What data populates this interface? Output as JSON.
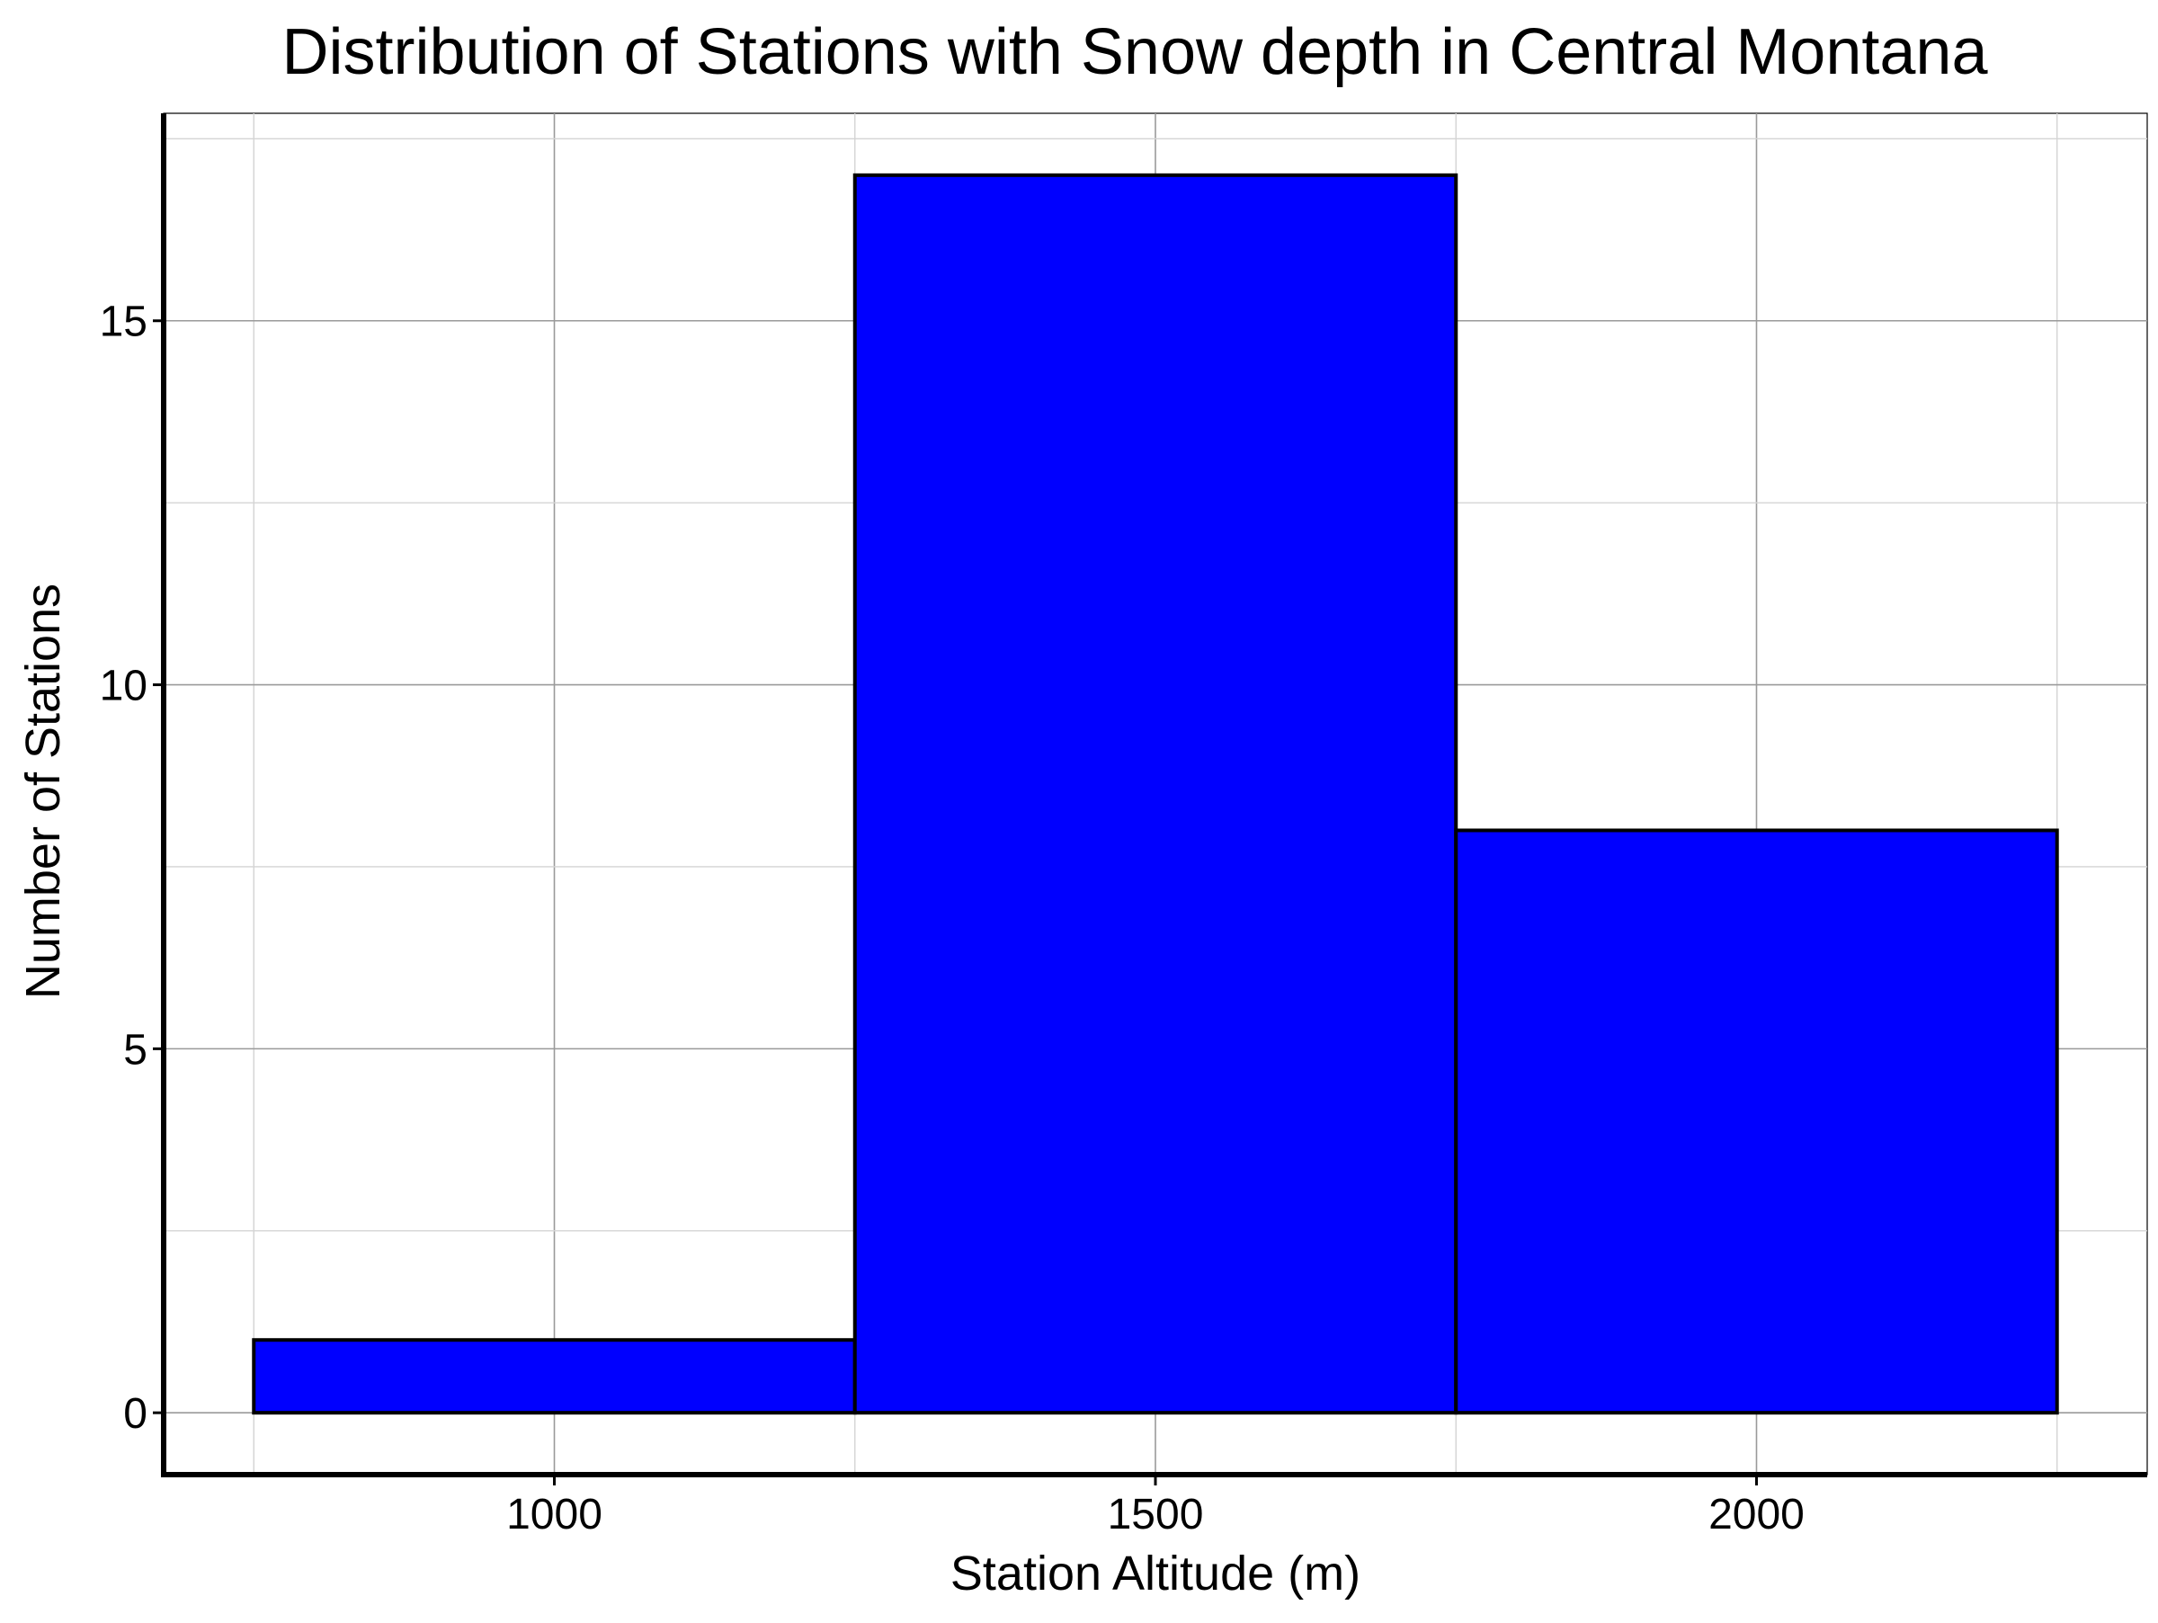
{
  "chart_data": {
    "type": "bar",
    "title": "Distribution of Stations with Snow depth in Central Montana",
    "xlabel": "Station Altitude (m)",
    "ylabel": "Number of Stations",
    "bins": [
      {
        "x0": 750,
        "x1": 1250,
        "value": 1
      },
      {
        "x0": 1250,
        "x1": 1750,
        "value": 17
      },
      {
        "x0": 1750,
        "x1": 2250,
        "value": 8
      }
    ],
    "xlim": [
      675,
      2325
    ],
    "ylim": [
      -0.85,
      17.85
    ],
    "xticks": [
      1000,
      1500,
      2000
    ],
    "yticks": [
      0,
      5,
      10,
      15
    ],
    "grid": true,
    "bar_color": "#0000ff",
    "edge_color": "#000000"
  }
}
